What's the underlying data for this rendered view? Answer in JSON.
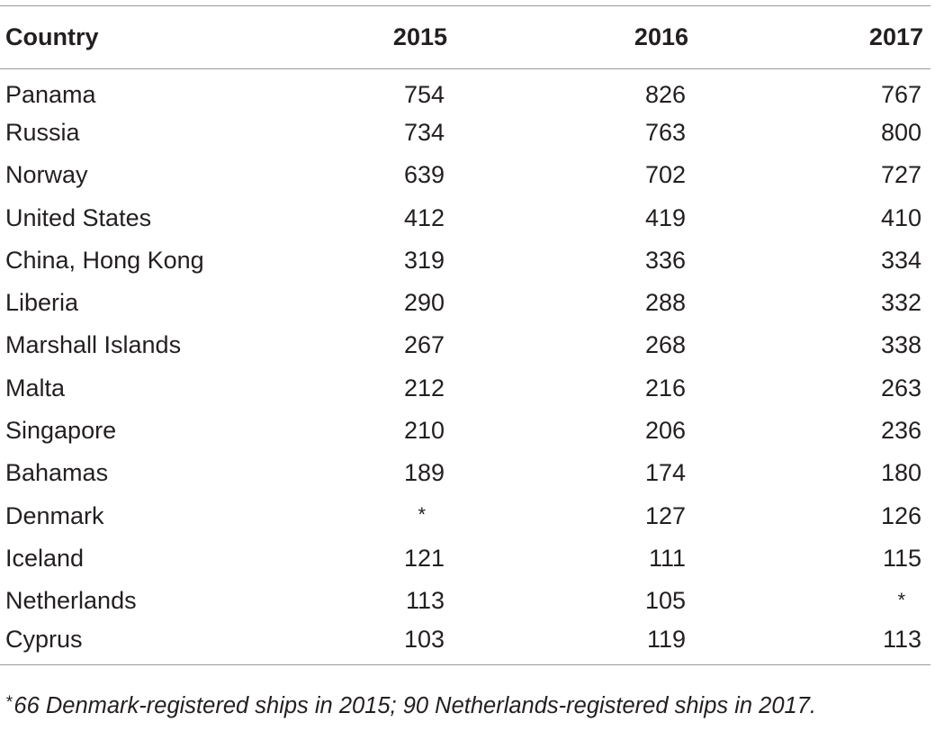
{
  "table": {
    "headers": [
      "Country",
      "2015",
      "2016",
      "2017"
    ],
    "rows": [
      [
        "Panama",
        "754",
        "826",
        "767"
      ],
      [
        "Russia",
        "734",
        "763",
        "800"
      ],
      [
        "Norway",
        "639",
        "702",
        "727"
      ],
      [
        "United States",
        "412",
        "419",
        "410"
      ],
      [
        "China, Hong Kong",
        "319",
        "336",
        "334"
      ],
      [
        "Liberia",
        "290",
        "288",
        "332"
      ],
      [
        "Marshall Islands",
        "267",
        "268",
        "338"
      ],
      [
        "Malta",
        "212",
        "216",
        "263"
      ],
      [
        "Singapore",
        "210",
        "206",
        "236"
      ],
      [
        "Bahamas",
        "189",
        "174",
        "180"
      ],
      [
        "Denmark",
        "*",
        "127",
        "126"
      ],
      [
        "Iceland",
        "121",
        "111",
        "115"
      ],
      [
        "Netherlands",
        "113",
        "105",
        "*"
      ],
      [
        "Cyprus",
        "103",
        "119",
        "113"
      ]
    ]
  },
  "footnote": {
    "mark": "*",
    "text": "66 Denmark-registered ships in 2015; 90 Netherlands-registered ships in 2017."
  },
  "chart_data": {
    "type": "table",
    "columns": [
      "Country",
      "2015",
      "2016",
      "2017"
    ],
    "rows": [
      {
        "Country": "Panama",
        "2015": 754,
        "2016": 826,
        "2017": 767
      },
      {
        "Country": "Russia",
        "2015": 734,
        "2016": 763,
        "2017": 800
      },
      {
        "Country": "Norway",
        "2015": 639,
        "2016": 702,
        "2017": 727
      },
      {
        "Country": "United States",
        "2015": 412,
        "2016": 419,
        "2017": 410
      },
      {
        "Country": "China, Hong Kong",
        "2015": 319,
        "2016": 336,
        "2017": 334
      },
      {
        "Country": "Liberia",
        "2015": 290,
        "2016": 288,
        "2017": 332
      },
      {
        "Country": "Marshall Islands",
        "2015": 267,
        "2016": 268,
        "2017": 338
      },
      {
        "Country": "Malta",
        "2015": 212,
        "2016": 216,
        "2017": 263
      },
      {
        "Country": "Singapore",
        "2015": 210,
        "2016": 206,
        "2017": 236
      },
      {
        "Country": "Bahamas",
        "2015": 189,
        "2016": 174,
        "2017": 180
      },
      {
        "Country": "Denmark",
        "2015": "*",
        "2016": 127,
        "2017": 126
      },
      {
        "Country": "Iceland",
        "2015": 121,
        "2016": 111,
        "2017": 115
      },
      {
        "Country": "Netherlands",
        "2015": 113,
        "2016": 105,
        "2017": "*"
      },
      {
        "Country": "Cyprus",
        "2015": 103,
        "2016": 119,
        "2017": 113
      }
    ]
  }
}
